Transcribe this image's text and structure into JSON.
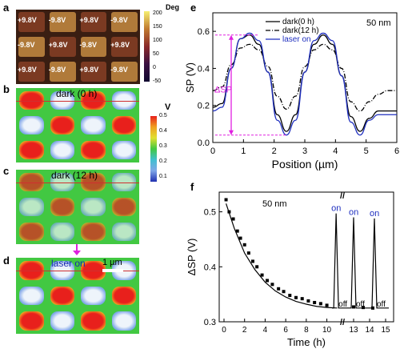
{
  "panels": {
    "a": {
      "letter": "a",
      "colorbar_title": "Deg",
      "colorbar_ticks": [
        "200",
        "150",
        "100",
        "50",
        "0",
        "-50"
      ],
      "labels": [
        [
          "+9.8V",
          "-9.8V",
          "+9.8V",
          "-9.8V"
        ],
        [
          "-9.8V",
          "+9.8V",
          "-9.8V",
          "+9.8V"
        ],
        [
          "+9.8V",
          "-9.8V",
          "+9.8V",
          "-9.8V"
        ]
      ]
    },
    "b": {
      "letter": "b",
      "title": "dark (0 h)",
      "colorbar_title": "V",
      "colorbar_ticks": [
        "0.5",
        "0.4",
        "0.3",
        "0.2",
        "0.1"
      ]
    },
    "c": {
      "letter": "c",
      "title": "dark (12 h)"
    },
    "d": {
      "letter": "d",
      "title": "laser on",
      "scale_bar": "1 µm"
    },
    "e": {
      "letter": "e"
    },
    "f": {
      "letter": "f"
    }
  },
  "map_colors": {
    "red": "#e8201c",
    "green": "#42c842",
    "blue": "#7fa6e8",
    "light": "#eef4fb",
    "yellow": "#e0e030"
  },
  "chart_data": [
    {
      "type": "line",
      "panel": "e",
      "annotation": "50 nm",
      "xlabel": "Position (µm)",
      "ylabel": "SP (V)",
      "xlim": [
        0,
        6
      ],
      "ylim": [
        0.0,
        0.7
      ],
      "xticks": [
        "0",
        "1",
        "2",
        "3",
        "4",
        "5",
        "6"
      ],
      "yticks": [
        "0.0",
        "0.2",
        "0.4",
        "0.6"
      ],
      "delta_label": "ΔSP",
      "series": [
        {
          "name": "dark(0 h)",
          "color": "#000000",
          "style": "solid",
          "x": [
            0,
            0.3,
            0.6,
            0.9,
            1.2,
            1.5,
            1.8,
            2.1,
            2.4,
            2.7,
            3.0,
            3.3,
            3.6,
            3.9,
            4.2,
            4.5,
            4.8,
            5.1,
            5.4,
            5.7,
            6.0
          ],
          "y": [
            0.19,
            0.21,
            0.4,
            0.56,
            0.58,
            0.53,
            0.38,
            0.15,
            0.06,
            0.15,
            0.38,
            0.53,
            0.58,
            0.53,
            0.36,
            0.14,
            0.06,
            0.13,
            0.17,
            0.17,
            0.17
          ]
        },
        {
          "name": "dark(12 h)",
          "color": "#000000",
          "style": "dashdot",
          "x": [
            0,
            0.3,
            0.6,
            0.9,
            1.2,
            1.5,
            1.8,
            2.1,
            2.4,
            2.7,
            3.0,
            3.3,
            3.6,
            3.9,
            4.2,
            4.5,
            4.8,
            5.1,
            5.4,
            5.7,
            6.0
          ],
          "y": [
            0.28,
            0.3,
            0.42,
            0.51,
            0.53,
            0.5,
            0.41,
            0.25,
            0.18,
            0.25,
            0.41,
            0.5,
            0.53,
            0.5,
            0.4,
            0.22,
            0.17,
            0.22,
            0.26,
            0.28,
            0.28
          ]
        },
        {
          "name": "laser on",
          "color": "#1f2fbf",
          "style": "solid",
          "x": [
            0,
            0.3,
            0.6,
            0.9,
            1.2,
            1.5,
            1.8,
            2.1,
            2.4,
            2.7,
            3.0,
            3.3,
            3.6,
            3.9,
            4.2,
            4.5,
            4.8,
            5.1,
            5.4,
            5.7,
            6.0
          ],
          "y": [
            0.17,
            0.19,
            0.4,
            0.56,
            0.59,
            0.55,
            0.38,
            0.12,
            0.04,
            0.12,
            0.38,
            0.55,
            0.59,
            0.55,
            0.36,
            0.11,
            0.04,
            0.12,
            0.15,
            0.15,
            0.15
          ]
        }
      ]
    },
    {
      "type": "scatter",
      "panel": "f",
      "annotation": "50 nm",
      "xlabel": "Time (h)",
      "ylabel": "ΔSP (V)",
      "ylim": [
        0.3,
        0.53
      ],
      "xticks": [
        "0",
        "2",
        "4",
        "6",
        "8",
        "10",
        "13",
        "14",
        "15"
      ],
      "yticks": [
        "0.3",
        "0.4",
        "0.5"
      ],
      "axis_break": "//",
      "on_label": "on",
      "off_label": "off",
      "scatter_x": [
        0.2,
        0.5,
        0.9,
        1.3,
        1.6,
        2.0,
        2.4,
        2.8,
        3.2,
        3.7,
        4.2,
        4.7,
        5.3,
        5.8,
        6.4,
        7.0,
        7.6,
        8.2,
        8.8,
        9.4,
        10.0,
        13.0,
        13.6,
        14.2
      ],
      "scatter_y": [
        0.522,
        0.5,
        0.487,
        0.465,
        0.452,
        0.44,
        0.425,
        0.41,
        0.4,
        0.385,
        0.375,
        0.368,
        0.36,
        0.355,
        0.348,
        0.344,
        0.342,
        0.338,
        0.335,
        0.333,
        0.33,
        0.327,
        0.326,
        0.325
      ],
      "fit_x": [
        0.2,
        1,
        2,
        3,
        4,
        5,
        6,
        7,
        8,
        9,
        10,
        11
      ],
      "fit_y": [
        0.515,
        0.47,
        0.425,
        0.395,
        0.372,
        0.356,
        0.345,
        0.337,
        0.332,
        0.328,
        0.326,
        0.325
      ],
      "pulse_x": [
        10.9,
        13.0,
        14.3
      ],
      "pulse_peak": [
        0.497,
        0.49,
        0.488
      ],
      "pulse_base": 0.325
    }
  ]
}
